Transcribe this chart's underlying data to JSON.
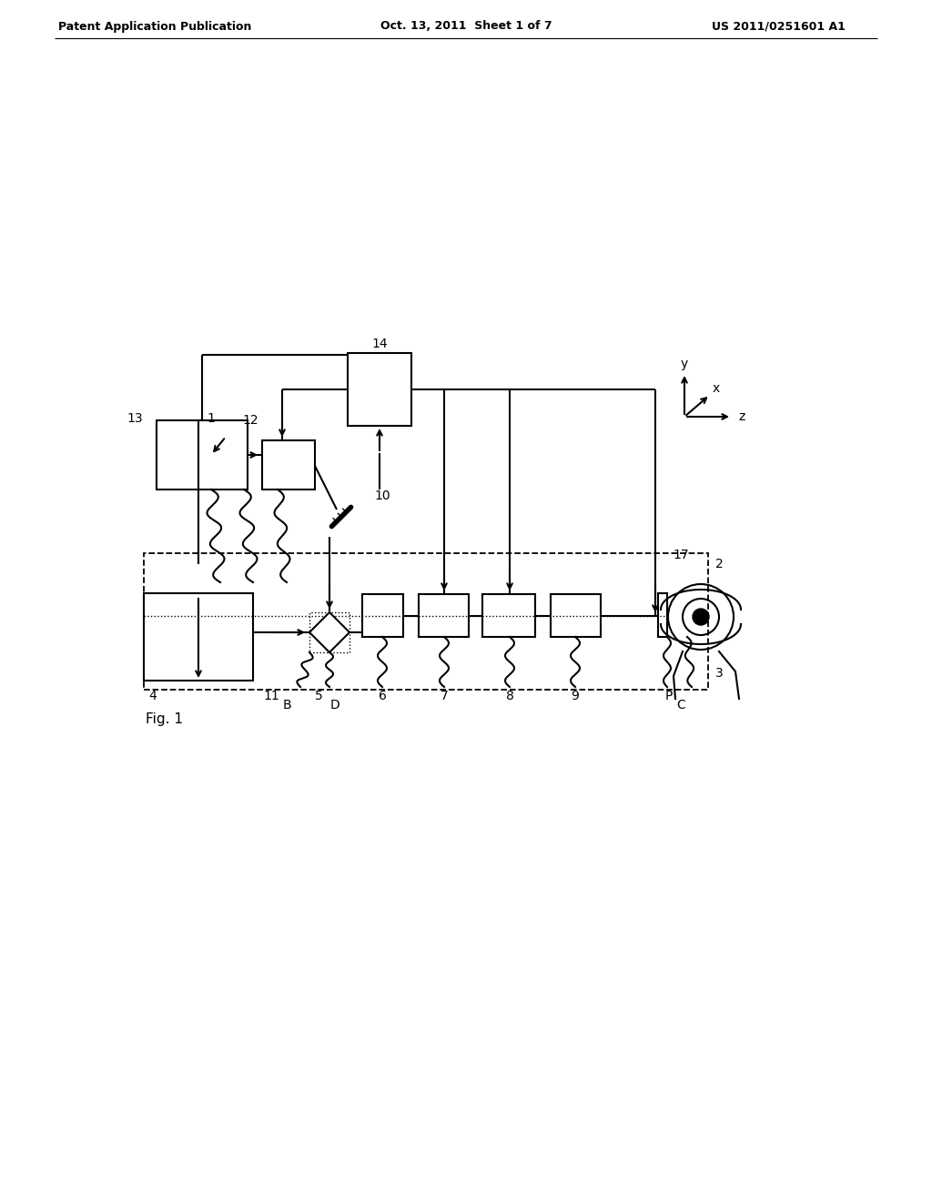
{
  "header_left": "Patent Application Publication",
  "header_center": "Oct. 13, 2011  Sheet 1 of 7",
  "header_right": "US 2011/0251601 A1",
  "fig_label": "Fig. 1",
  "background": "#ffffff"
}
